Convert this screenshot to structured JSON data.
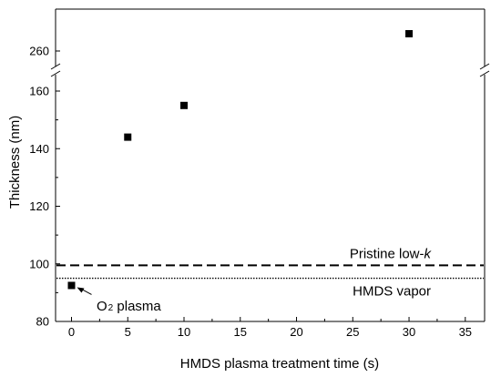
{
  "chart_data": {
    "type": "scatter",
    "title": "",
    "xlabel": "HMDS plasma treatment time (s)",
    "ylabel": "Thickness (nm)",
    "xlim": [
      0,
      35
    ],
    "ylim_lower": [
      80,
      160
    ],
    "ylim_upper": [
      260,
      260
    ],
    "broken_y_axis": true,
    "x_ticks": [
      0,
      5,
      10,
      15,
      20,
      25,
      30,
      35
    ],
    "y_ticks": [
      80,
      100,
      120,
      140,
      160,
      260
    ],
    "tick_labels_x": [
      "0",
      "5",
      "10",
      "15",
      "20",
      "25",
      "30",
      "35"
    ],
    "tick_labels_y": [
      "80",
      "100",
      "120",
      "140",
      "160",
      "260"
    ],
    "series": [
      {
        "marker": "square",
        "color": "#000000",
        "points": [
          {
            "x": 0,
            "y": 92.5
          },
          {
            "x": 5,
            "y": 144
          },
          {
            "x": 10,
            "y": 155
          },
          {
            "x": 30,
            "y": 266
          }
        ]
      }
    ],
    "reference_lines": [
      {
        "label_main": "Pristine low-",
        "label_italic": "k",
        "y": 99.5,
        "style": "dashed"
      },
      {
        "label_main": "HMDS vapor",
        "label_italic": "",
        "y": 95,
        "style": "dotted"
      }
    ],
    "annotations": [
      {
        "text_prefix": "O",
        "text_sub": "2",
        "text_suffix": " plasma",
        "points_to": {
          "x": 0,
          "y": 92.5
        }
      }
    ],
    "grid": false,
    "legend": "none"
  }
}
